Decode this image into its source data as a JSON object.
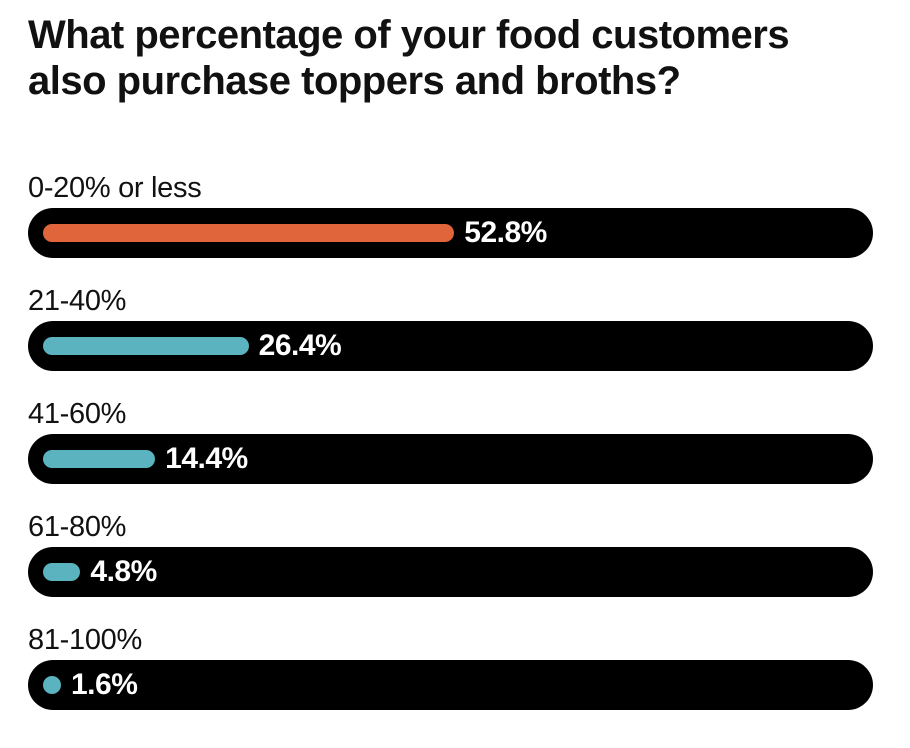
{
  "chart_data": {
    "type": "bar",
    "orientation": "horizontal",
    "title": "What percentage of your food customers also purchase toppers and broths?",
    "categories": [
      "0-20% or less",
      "21-40%",
      "41-60%",
      "61-80%",
      "81-100%"
    ],
    "values": [
      52.8,
      26.4,
      14.4,
      4.8,
      1.6
    ],
    "value_labels": [
      "52.8%",
      "26.4%",
      "14.4%",
      "4.8%",
      "1.6%"
    ],
    "highlight_index": 0,
    "colors": {
      "highlight": "#e0653a",
      "default": "#5ab3be",
      "track": "#000000"
    },
    "grid": false,
    "legend": "none"
  }
}
